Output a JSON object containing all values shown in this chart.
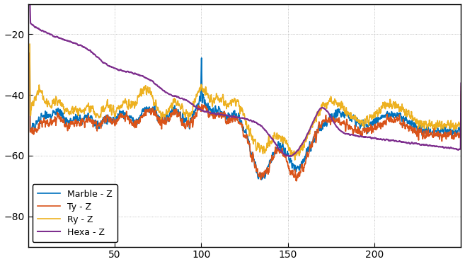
{
  "title": "",
  "xlabel": "",
  "ylabel": "",
  "background_color": "#ffffff",
  "axes_background": "#ffffff",
  "grid_color": "#b0b0b0",
  "line_colors": {
    "marble": "#0072bd",
    "ty": "#d95319",
    "ry": "#edb120",
    "hexa": "#7e2f8e"
  },
  "legend_labels": [
    "Marble - Z",
    "Ty - Z",
    "Ry - Z",
    "Hexa - Z"
  ],
  "ylim_data": [
    -90,
    -10
  ],
  "xlim": [
    0,
    250
  ],
  "figsize": [
    6.57,
    3.73
  ],
  "dpi": 100,
  "yticks": [
    -80,
    -60,
    -40,
    -20
  ],
  "xticks": [
    50,
    100,
    150,
    200
  ]
}
